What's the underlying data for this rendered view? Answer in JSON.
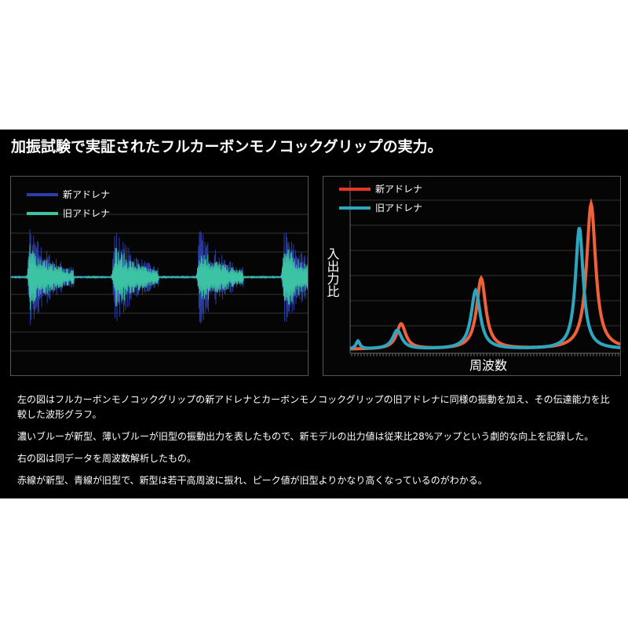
{
  "title": "加振試験で実証されたフルカーボンモノコックグリップの実力。",
  "left_panel": {
    "legend": [
      "新アドレナ",
      "旧アドレナ"
    ]
  },
  "right_panel": {
    "legend": [
      "新アドレナ",
      "旧アドレナ"
    ],
    "y_label": "入出力比",
    "x_label": "周波数"
  },
  "paragraphs": [
    "左の図はフルカーボンモノコックグリップの新アドレナとカーボンモノコックグリップの旧アドレナに同様の振動を加え、その伝達能力を比較した波形グラフ。",
    "濃いブルーが新型、薄いブルーが旧型の振動出力を表したもので、新モデルの出力値は従来比28%アップという劇的な向上を記録した。",
    "右の図は同データを周波数解析したもの。",
    "赤線が新型、青線が旧型で、新型は若干高周波に振れ、ピーク値が旧型よりかなり高くなっているのがわかる。"
  ]
}
